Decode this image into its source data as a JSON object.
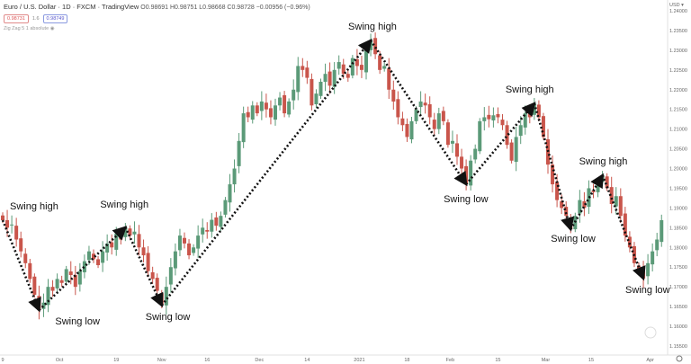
{
  "header": {
    "title": "Euro / U.S. Dollar · 1D · FXCM · TradingView",
    "ohlc": "O0.98691 H0.98751 L0.98668 C0.98728 −0.00956 (−0.96%)",
    "bid": "0.98731",
    "spread": "1.6",
    "ask": "0.98749",
    "indicator": "Zig Zag 5 1 absolute"
  },
  "chart_data": {
    "type": "candlestick",
    "currency_label": "USD",
    "ylim": [
      1.155,
      1.242
    ],
    "yticks": [
      "1.24000",
      "1.23500",
      "1.23000",
      "1.22500",
      "1.22000",
      "1.21500",
      "1.21000",
      "1.20500",
      "1.20000",
      "1.19500",
      "1.19000",
      "1.18500",
      "1.18000",
      "1.17500",
      "1.17000",
      "1.16500",
      "1.16000",
      "1.15500"
    ],
    "xticks": [
      {
        "label": "9",
        "i": 0
      },
      {
        "label": "Oct",
        "i": 12.5
      },
      {
        "label": "19",
        "i": 25
      },
      {
        "label": "Nov",
        "i": 35
      },
      {
        "label": "16",
        "i": 45
      },
      {
        "label": "Dec",
        "i": 56.5
      },
      {
        "label": "14",
        "i": 67
      },
      {
        "label": "2021",
        "i": 78.5
      },
      {
        "label": "18",
        "i": 89
      },
      {
        "label": "Feb",
        "i": 98.5
      },
      {
        "label": "15",
        "i": 109
      },
      {
        "label": "Mar",
        "i": 119.5
      },
      {
        "label": "15",
        "i": 129.5
      },
      {
        "label": "Apr",
        "i": 142.5
      }
    ],
    "closes": [
      1.1869,
      1.185,
      1.1858,
      1.182,
      1.179,
      1.176,
      1.172,
      1.168,
      1.1641,
      1.166,
      1.17,
      1.169,
      1.172,
      1.171,
      1.1745,
      1.173,
      1.17,
      1.174,
      1.1765,
      1.179,
      1.177,
      1.1755,
      1.179,
      1.181,
      1.18,
      1.1835,
      1.182,
      1.1851,
      1.183,
      1.184,
      1.18,
      1.178,
      1.174,
      1.172,
      1.169,
      1.1653,
      1.17,
      1.175,
      1.179,
      1.183,
      1.181,
      1.178,
      1.18,
      1.183,
      1.185,
      1.184,
      1.187,
      1.1855,
      1.188,
      1.192,
      1.196,
      1.2,
      1.207,
      1.214,
      1.213,
      1.216,
      1.214,
      1.217,
      1.215,
      1.213,
      1.216,
      1.218,
      1.214,
      1.217,
      1.22,
      1.226,
      1.225,
      1.223,
      1.216,
      1.219,
      1.222,
      1.224,
      1.221,
      1.225,
      1.227,
      1.224,
      1.223,
      1.228,
      1.226,
      1.225,
      1.23,
      1.2325,
      1.229,
      1.225,
      1.226,
      1.22,
      1.217,
      1.213,
      1.211,
      1.208,
      1.212,
      1.215,
      1.217,
      1.216,
      1.213,
      1.21,
      1.214,
      1.212,
      1.206,
      1.207,
      1.203,
      1.2,
      1.196,
      1.202,
      1.205,
      1.212,
      1.213,
      1.2125,
      1.2135,
      1.213,
      1.211,
      1.206,
      1.202,
      1.208,
      1.211,
      1.214,
      1.213,
      1.2165,
      1.213,
      1.208,
      1.201,
      1.196,
      1.192,
      1.19,
      1.188,
      1.1846,
      1.188,
      1.192,
      1.19,
      1.195,
      1.194,
      1.196,
      1.1983,
      1.195,
      1.191,
      1.193,
      1.188,
      1.183,
      1.18,
      1.176,
      1.174,
      1.1721,
      1.176,
      1.179,
      1.182,
      1.1869
    ],
    "swings": [
      {
        "i": 0,
        "price": 1.1869,
        "label": "Swing high"
      },
      {
        "i": 8,
        "price": 1.1641,
        "label": "Swing low"
      },
      {
        "i": 27,
        "price": 1.1851,
        "label": "Swing high"
      },
      {
        "i": 35,
        "price": 1.1653,
        "label": "Swing low"
      },
      {
        "i": 81,
        "price": 1.2325,
        "label": "Swing high"
      },
      {
        "i": 102,
        "price": 1.196,
        "label": "Swing low"
      },
      {
        "i": 117,
        "price": 1.2165,
        "label": "Swing high"
      },
      {
        "i": 125,
        "price": 1.1846,
        "label": "Swing low"
      },
      {
        "i": 132,
        "price": 1.1983,
        "label": "Swing high"
      },
      {
        "i": 141,
        "price": 1.1721,
        "label": "Swing low"
      }
    ],
    "colors": {
      "up": "#5b9a78",
      "down": "#c9554b",
      "annotation": "#111111"
    }
  }
}
